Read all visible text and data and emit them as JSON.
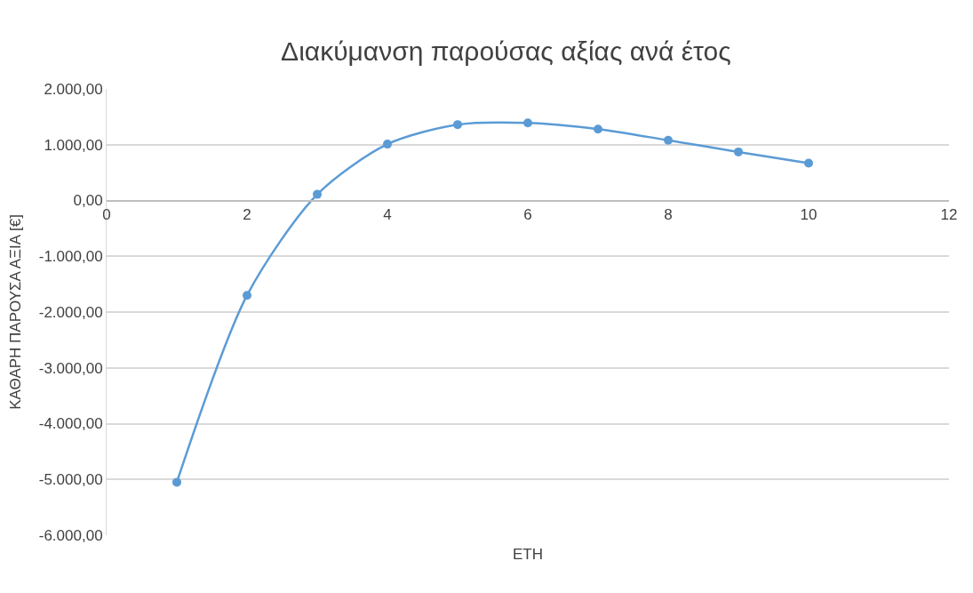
{
  "chart_data": {
    "type": "line",
    "title": "Διακύμανση παρούσας αξίας ανά έτος",
    "xlabel": "ΕΤΗ",
    "ylabel": "ΚΑΘΑΡΗ ΠΑΡΟΥΣΑ ΑΞΙΑ [€]",
    "x": [
      1,
      2,
      3,
      4,
      5,
      6,
      7,
      8,
      9,
      10
    ],
    "series": [
      {
        "color": "#5b9bd5",
        "values": [
          -5050,
          -1700,
          110,
          1010,
          1360,
          1390,
          1280,
          1080,
          870,
          670
        ]
      }
    ],
    "xlim": [
      0,
      12
    ],
    "xticks": [
      0,
      2,
      4,
      6,
      8,
      10,
      12
    ],
    "ylim": [
      -6000,
      2000
    ],
    "yticks": [
      {
        "value": -6000,
        "label": "-6.000,00"
      },
      {
        "value": -5000,
        "label": "-5.000,00"
      },
      {
        "value": -4000,
        "label": "-4.000,00"
      },
      {
        "value": -3000,
        "label": "-3.000,00"
      },
      {
        "value": -2000,
        "label": "-2.000,00"
      },
      {
        "value": -1000,
        "label": "-1.000,00"
      },
      {
        "value": 0,
        "label": "0,00"
      },
      {
        "value": 1000,
        "label": "1.000,00"
      },
      {
        "value": 2000,
        "label": "2.000,00"
      }
    ],
    "grid": "y",
    "marker": "circle",
    "line_style": "solid"
  }
}
